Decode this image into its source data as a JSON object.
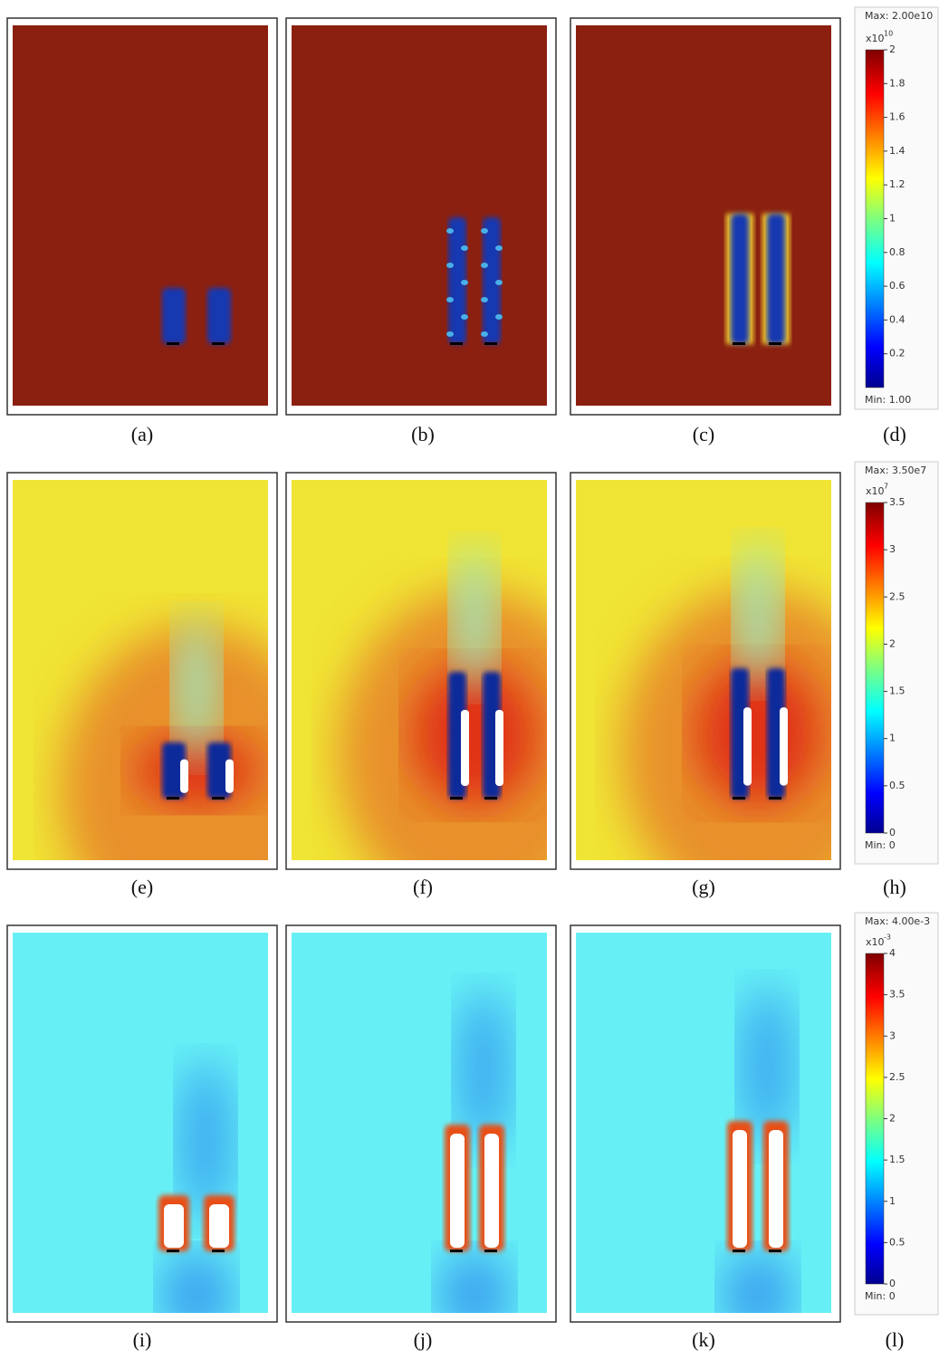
{
  "panel_labels": [
    "(a)",
    "(b)",
    "(c)",
    "(d)",
    "(e)",
    "(f)",
    "(g)",
    "(h)",
    "(i)",
    "(j)",
    "(k)",
    "(l)"
  ],
  "colorbars": [
    {
      "max": "Max: 2.00e10",
      "multiplier": "x10",
      "exponent": "10",
      "min": "Min: 1.00",
      "range": [
        0,
        2
      ],
      "ticks": [
        0.2,
        0.4,
        0.6,
        0.8,
        1,
        1.2,
        1.4,
        1.6,
        1.8,
        2
      ]
    },
    {
      "max": "Max: 3.50e7",
      "multiplier": "x10",
      "exponent": "7",
      "min": "Min: 0",
      "range": [
        0,
        3.5
      ],
      "ticks": [
        0,
        0.5,
        1,
        1.5,
        2,
        2.5,
        3,
        3.5
      ]
    },
    {
      "max": "Max: 4.00e-3",
      "multiplier": "x10",
      "exponent": "-3",
      "min": "Min: 0",
      "range": [
        0,
        4
      ],
      "ticks": [
        0,
        0.5,
        1,
        1.5,
        2,
        2.5,
        3,
        3.5,
        4
      ]
    }
  ]
}
